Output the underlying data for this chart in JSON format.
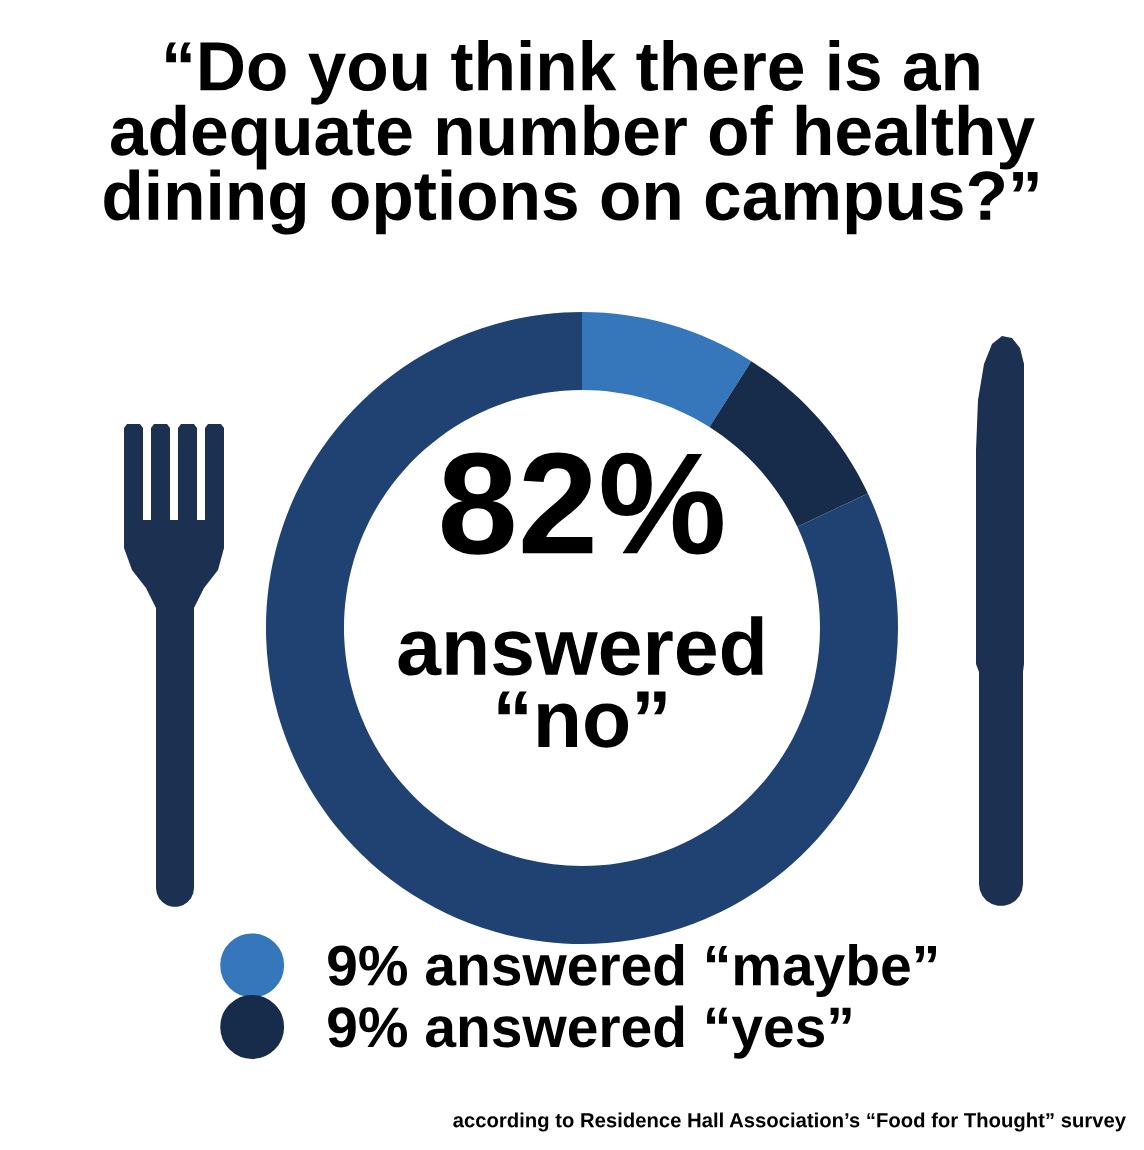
{
  "chart_data": {
    "type": "donut",
    "title": "“Do you think there is an\nadequate number of healthy\ndining options on campus?”",
    "categories": [
      "9% answered “maybe”",
      "9% answered “yes”",
      null
    ],
    "values": [
      9,
      9,
      82
    ],
    "colors": [
      "#3677bb",
      "#172c4a",
      "#1f4272"
    ],
    "legend": "bottom",
    "annotations": [
      "82%",
      "answered\n“no”",
      "according to Residence Hall Association’s “Food for Thought” survey"
    ]
  }
}
